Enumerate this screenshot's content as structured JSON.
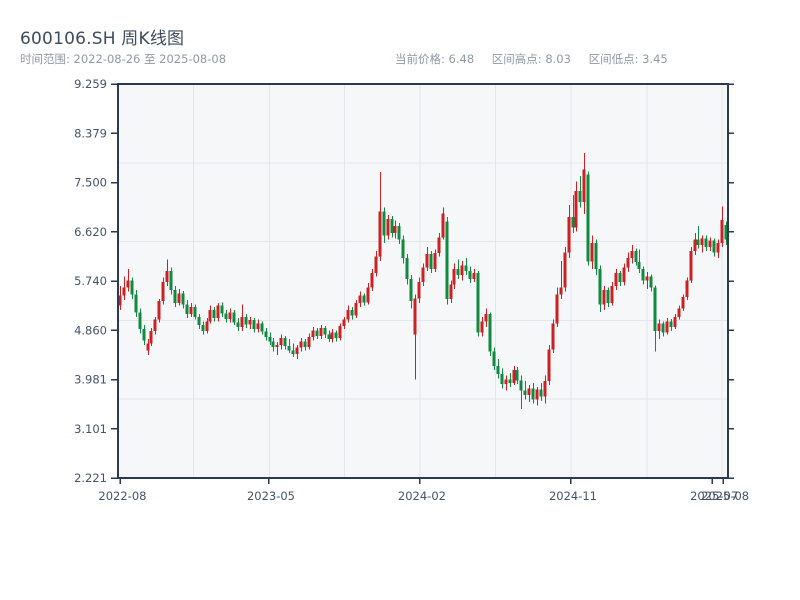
{
  "header": {
    "title": "600106.SH 周K线图",
    "time_range_label": "时间范围:",
    "time_range_value": "2022-08-26 至 2025-08-08",
    "stats": [
      {
        "label": "当前价格:",
        "value": "6.48"
      },
      {
        "label": "区间高点:",
        "value": "8.03"
      },
      {
        "label": "区间低点:",
        "value": "3.45"
      }
    ]
  },
  "chart_data": {
    "type": "candlestick",
    "symbol": "600106.SH",
    "frequency": "weekly",
    "date_start": "2022-08-26",
    "date_end": "2025-08-08",
    "current_price": 6.48,
    "range_high": 8.03,
    "range_low": 3.45,
    "ylim": [
      2.221,
      9.259
    ],
    "y_ticks": [
      "9.259",
      "8.379",
      "7.500",
      "6.620",
      "5.740",
      "4.860",
      "3.981",
      "3.101",
      "2.221"
    ],
    "x_ticks": [
      {
        "label": "2022-08",
        "pos": 0.004
      },
      {
        "label": "2023-05",
        "pos": 0.2475
      },
      {
        "label": "2024-02",
        "pos": 0.495
      },
      {
        "label": "2024-11",
        "pos": 0.7426
      },
      {
        "label": "2025-07",
        "pos": 0.974
      },
      {
        "label": "2025-08",
        "pos": 0.992
      }
    ],
    "grid": true,
    "colors": {
      "up": "#cc2025",
      "down": "#108a3e",
      "spine": "#2b3a50",
      "plot_bg": "#f5f7f9",
      "grid": "#e2e6ec",
      "axis_label": "#44536a"
    },
    "ohlc": [
      [
        5.3,
        5.65,
        5.22,
        5.48
      ],
      [
        5.48,
        5.82,
        5.4,
        5.62
      ],
      [
        5.62,
        5.95,
        5.55,
        5.75
      ],
      [
        5.75,
        5.8,
        5.42,
        5.5
      ],
      [
        5.5,
        5.58,
        5.1,
        5.18
      ],
      [
        5.18,
        5.25,
        4.8,
        4.88
      ],
      [
        4.88,
        4.95,
        4.6,
        4.68
      ],
      [
        4.5,
        4.7,
        4.42,
        4.62
      ],
      [
        4.62,
        4.9,
        4.58,
        4.85
      ],
      [
        4.85,
        5.1,
        4.78,
        5.05
      ],
      [
        5.05,
        5.42,
        5.0,
        5.38
      ],
      [
        5.38,
        5.8,
        5.32,
        5.72
      ],
      [
        5.72,
        6.12,
        5.65,
        5.92
      ],
      [
        5.92,
        5.98,
        5.5,
        5.58
      ],
      [
        5.58,
        5.65,
        5.28,
        5.35
      ],
      [
        5.35,
        5.6,
        5.3,
        5.52
      ],
      [
        5.52,
        5.56,
        5.25,
        5.32
      ],
      [
        5.32,
        5.4,
        5.08,
        5.15
      ],
      [
        5.15,
        5.35,
        5.1,
        5.28
      ],
      [
        5.28,
        5.32,
        5.05,
        5.1
      ],
      [
        5.1,
        5.15,
        4.88,
        4.95
      ],
      [
        4.95,
        5.02,
        4.78,
        4.85
      ],
      [
        4.85,
        5.08,
        4.8,
        5.02
      ],
      [
        5.02,
        5.3,
        4.98,
        5.22
      ],
      [
        5.22,
        5.28,
        5.02,
        5.08
      ],
      [
        5.08,
        5.35,
        5.02,
        5.3
      ],
      [
        5.3,
        5.36,
        5.1,
        5.16
      ],
      [
        5.16,
        5.22,
        5.0,
        5.06
      ],
      [
        5.06,
        5.25,
        5.0,
        5.18
      ],
      [
        5.18,
        5.22,
        4.95,
        5.0
      ],
      [
        5.0,
        5.08,
        4.85,
        4.92
      ],
      [
        4.92,
        5.32,
        4.85,
        5.1
      ],
      [
        5.1,
        5.15,
        4.9,
        4.96
      ],
      [
        4.96,
        5.1,
        4.88,
        5.04
      ],
      [
        5.04,
        5.08,
        4.82,
        4.88
      ],
      [
        4.88,
        5.05,
        4.82,
        4.98
      ],
      [
        4.98,
        5.02,
        4.78,
        4.84
      ],
      [
        4.84,
        4.9,
        4.68,
        4.74
      ],
      [
        4.74,
        4.82,
        4.6,
        4.66
      ],
      [
        4.66,
        4.72,
        4.48,
        4.56
      ],
      [
        4.56,
        4.65,
        4.42,
        4.6
      ],
      [
        4.6,
        4.78,
        4.52,
        4.72
      ],
      [
        4.72,
        4.76,
        4.52,
        4.58
      ],
      [
        4.58,
        4.7,
        4.45,
        4.5
      ],
      [
        4.5,
        4.62,
        4.38,
        4.44
      ],
      [
        4.44,
        4.6,
        4.35,
        4.55
      ],
      [
        4.55,
        4.72,
        4.48,
        4.66
      ],
      [
        4.66,
        4.7,
        4.5,
        4.56
      ],
      [
        4.56,
        4.8,
        4.52,
        4.74
      ],
      [
        4.74,
        4.92,
        4.68,
        4.86
      ],
      [
        4.86,
        4.9,
        4.7,
        4.76
      ],
      [
        4.76,
        4.95,
        4.7,
        4.9
      ],
      [
        4.9,
        4.94,
        4.72,
        4.78
      ],
      [
        4.78,
        4.86,
        4.65,
        4.7
      ],
      [
        4.7,
        4.88,
        4.64,
        4.82
      ],
      [
        4.82,
        4.86,
        4.66,
        4.72
      ],
      [
        4.72,
        4.98,
        4.68,
        4.94
      ],
      [
        4.94,
        5.1,
        4.88,
        5.05
      ],
      [
        5.05,
        5.3,
        5.0,
        5.22
      ],
      [
        5.22,
        5.28,
        5.05,
        5.12
      ],
      [
        5.12,
        5.4,
        5.08,
        5.35
      ],
      [
        5.35,
        5.55,
        5.28,
        5.48
      ],
      [
        5.48,
        5.52,
        5.3,
        5.36
      ],
      [
        5.36,
        5.7,
        5.32,
        5.62
      ],
      [
        5.62,
        5.95,
        5.56,
        5.88
      ],
      [
        5.88,
        6.28,
        5.82,
        6.18
      ],
      [
        6.18,
        7.69,
        6.1,
        6.98
      ],
      [
        6.98,
        7.05,
        6.42,
        6.55
      ],
      [
        6.55,
        6.92,
        6.48,
        6.85
      ],
      [
        6.85,
        6.9,
        6.52,
        6.6
      ],
      [
        6.6,
        6.82,
        6.5,
        6.72
      ],
      [
        6.72,
        6.78,
        6.4,
        6.48
      ],
      [
        6.48,
        6.55,
        6.05,
        6.15
      ],
      [
        6.15,
        6.22,
        5.68,
        5.78
      ],
      [
        5.78,
        5.85,
        5.25,
        5.38
      ],
      [
        4.78,
        5.5,
        3.98,
        5.43
      ],
      [
        5.43,
        5.8,
        5.35,
        5.72
      ],
      [
        5.72,
        6.05,
        5.65,
        5.98
      ],
      [
        5.98,
        6.35,
        5.92,
        6.22
      ],
      [
        6.22,
        6.28,
        5.88,
        5.95
      ],
      [
        5.95,
        6.3,
        5.9,
        6.24
      ],
      [
        6.24,
        6.6,
        6.18,
        6.52
      ],
      [
        6.52,
        7.05,
        6.48,
        6.95
      ],
      [
        6.8,
        6.88,
        5.32,
        5.42
      ],
      [
        5.42,
        5.75,
        5.35,
        5.68
      ],
      [
        5.68,
        6.05,
        5.6,
        5.95
      ],
      [
        5.95,
        6.12,
        5.78,
        5.85
      ],
      [
        5.85,
        6.1,
        5.75,
        6.02
      ],
      [
        6.02,
        6.15,
        5.85,
        5.92
      ],
      [
        5.92,
        6.0,
        5.7,
        5.78
      ],
      [
        5.78,
        5.95,
        5.72,
        5.88
      ],
      [
        5.88,
        5.92,
        4.75,
        4.82
      ],
      [
        4.82,
        5.1,
        4.75,
        5.02
      ],
      [
        5.02,
        5.25,
        4.92,
        5.15
      ],
      [
        5.15,
        5.18,
        4.4,
        4.48
      ],
      [
        4.48,
        4.55,
        4.15,
        4.22
      ],
      [
        4.22,
        4.35,
        4.0,
        4.08
      ],
      [
        4.08,
        4.18,
        3.82,
        3.9
      ],
      [
        3.9,
        4.05,
        3.78,
        3.98
      ],
      [
        3.98,
        4.1,
        3.85,
        3.92
      ],
      [
        3.92,
        4.22,
        3.88,
        4.15
      ],
      [
        4.15,
        4.2,
        3.9,
        3.96
      ],
      [
        3.96,
        4.05,
        3.45,
        3.78
      ],
      [
        3.78,
        3.95,
        3.62,
        3.7
      ],
      [
        3.7,
        3.88,
        3.58,
        3.82
      ],
      [
        3.82,
        3.92,
        3.55,
        3.62
      ],
      [
        3.62,
        3.85,
        3.52,
        3.8
      ],
      [
        3.8,
        3.92,
        3.6,
        3.68
      ],
      [
        3.68,
        4.05,
        3.55,
        3.95
      ],
      [
        3.95,
        4.6,
        3.88,
        4.52
      ],
      [
        4.52,
        5.05,
        4.45,
        4.98
      ],
      [
        4.98,
        5.62,
        4.92,
        5.5
      ],
      [
        5.5,
        6.1,
        5.42,
        5.62
      ],
      [
        5.62,
        6.35,
        5.55,
        6.25
      ],
      [
        6.25,
        7.1,
        6.15,
        6.88
      ],
      [
        6.88,
        7.28,
        6.6,
        6.7
      ],
      [
        6.7,
        7.52,
        6.62,
        7.35
      ],
      [
        7.35,
        7.62,
        7.05,
        7.15
      ],
      [
        7.15,
        8.03,
        6.94,
        7.73
      ],
      [
        7.64,
        7.7,
        6.02,
        6.09
      ],
      [
        6.09,
        6.55,
        5.95,
        6.42
      ],
      [
        6.42,
        6.48,
        5.85,
        5.95
      ],
      [
        5.95,
        6.02,
        5.19,
        5.32
      ],
      [
        5.32,
        5.65,
        5.22,
        5.58
      ],
      [
        5.58,
        5.62,
        5.28,
        5.35
      ],
      [
        5.35,
        5.72,
        5.3,
        5.65
      ],
      [
        5.65,
        5.95,
        5.58,
        5.88
      ],
      [
        5.88,
        5.92,
        5.65,
        5.72
      ],
      [
        5.72,
        6.05,
        5.66,
        5.98
      ],
      [
        5.98,
        6.25,
        5.9,
        6.15
      ],
      [
        6.15,
        6.38,
        6.05,
        6.28
      ],
      [
        6.28,
        6.32,
        6.02,
        6.08
      ],
      [
        6.08,
        6.3,
        5.88,
        5.95
      ],
      [
        5.95,
        6.0,
        5.68,
        5.75
      ],
      [
        5.75,
        5.9,
        5.6,
        5.82
      ],
      [
        5.82,
        5.86,
        5.55,
        5.62
      ],
      [
        5.62,
        5.66,
        4.48,
        4.85
      ],
      [
        4.85,
        5.05,
        4.7,
        4.98
      ],
      [
        4.98,
        5.02,
        4.75,
        4.82
      ],
      [
        4.82,
        5.08,
        4.78,
        5.02
      ],
      [
        5.02,
        5.06,
        4.85,
        4.92
      ],
      [
        4.92,
        5.15,
        4.88,
        5.1
      ],
      [
        5.1,
        5.3,
        5.05,
        5.25
      ],
      [
        5.25,
        5.5,
        5.2,
        5.45
      ],
      [
        5.45,
        5.8,
        5.4,
        5.75
      ],
      [
        5.75,
        6.35,
        5.7,
        6.28
      ],
      [
        6.28,
        6.6,
        6.2,
        6.48
      ],
      [
        6.48,
        6.72,
        6.32,
        6.38
      ],
      [
        6.38,
        6.55,
        6.25,
        6.5
      ],
      [
        6.5,
        6.55,
        6.28,
        6.35
      ],
      [
        6.35,
        6.52,
        6.28,
        6.46
      ],
      [
        6.46,
        6.5,
        6.18,
        6.25
      ],
      [
        6.25,
        6.48,
        6.15,
        6.42
      ],
      [
        6.42,
        7.07,
        6.35,
        6.83
      ],
      [
        6.74,
        6.8,
        6.38,
        6.48
      ]
    ]
  }
}
